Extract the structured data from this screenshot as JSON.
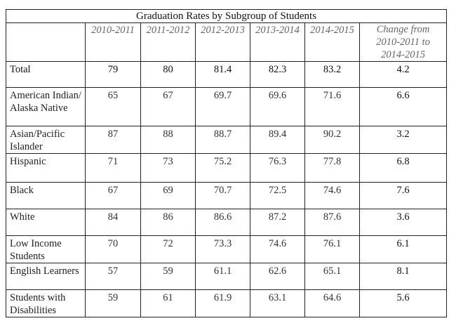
{
  "title": "Graduation Rates by Subgroup of Students",
  "columns": [
    "",
    "2010-2011",
    "2011-2012",
    "2012-2013",
    "2013-2014",
    "2014-2015",
    "Change from 2010-2011 to 2014-2015"
  ],
  "rows": [
    {
      "label": "Total",
      "values": [
        "79",
        "80",
        "81.4",
        "82.3",
        "83.2",
        "4.2"
      ]
    },
    {
      "label": "American Indian/ Alaska Native",
      "values": [
        "65",
        "67",
        "69.7",
        "69.6",
        "71.6",
        "6.6"
      ]
    },
    {
      "label": "Asian/Pacific Islander",
      "values": [
        "87",
        "88",
        "88.7",
        "89.4",
        "90.2",
        "3.2"
      ]
    },
    {
      "label": "Hispanic",
      "values": [
        "71",
        "73",
        "75.2",
        "76.3",
        "77.8",
        "6.8"
      ]
    },
    {
      "label": "Black",
      "values": [
        "67",
        "69",
        "70.7",
        "72.5",
        "74.6",
        "7.6"
      ]
    },
    {
      "label": "White",
      "values": [
        "84",
        "86",
        "86.6",
        "87.2",
        "87.6",
        "3.6"
      ]
    },
    {
      "label": "Low Income Students",
      "values": [
        "70",
        "72",
        "73.3",
        "74.6",
        "76.1",
        "6.1"
      ]
    },
    {
      "label": "English Learners",
      "values": [
        "57",
        "59",
        "61.1",
        "62.6",
        "65.1",
        "8.1"
      ]
    },
    {
      "label": "Students with Disabilities",
      "values": [
        "59",
        "61",
        "61.9",
        "63.1",
        "64.6",
        "5.6"
      ]
    }
  ]
}
